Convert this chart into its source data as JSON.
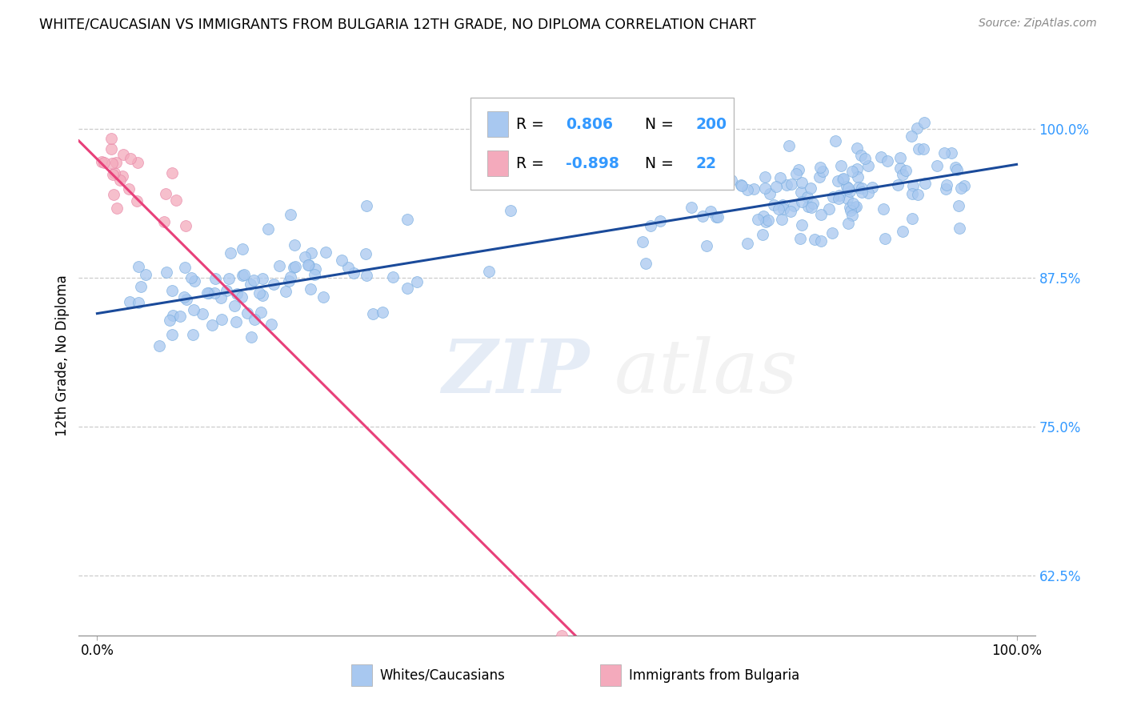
{
  "title": "WHITE/CAUCASIAN VS IMMIGRANTS FROM BULGARIA 12TH GRADE, NO DIPLOMA CORRELATION CHART",
  "source": "Source: ZipAtlas.com",
  "ylabel": "12th Grade, No Diploma",
  "blue_R": 0.806,
  "blue_N": 200,
  "pink_R": -0.898,
  "pink_N": 22,
  "blue_color": "#a8c8f0",
  "blue_edge_color": "#7aaee0",
  "blue_line_color": "#1a4a9a",
  "pink_color": "#f4aabc",
  "pink_edge_color": "#e888a8",
  "pink_line_color": "#e8407a",
  "legend_label_blue": "Whites/Caucasians",
  "legend_label_pink": "Immigrants from Bulgaria",
  "watermark_zip": "ZIP",
  "watermark_atlas": "atlas",
  "y_ticks": [
    0.625,
    0.75,
    0.875,
    1.0
  ],
  "y_tick_labels": [
    "62.5%",
    "75.0%",
    "87.5%",
    "100.0%"
  ],
  "xlim": [
    -0.02,
    1.02
  ],
  "ylim": [
    0.575,
    1.045
  ],
  "blue_seed": 42,
  "pink_seed": 99
}
